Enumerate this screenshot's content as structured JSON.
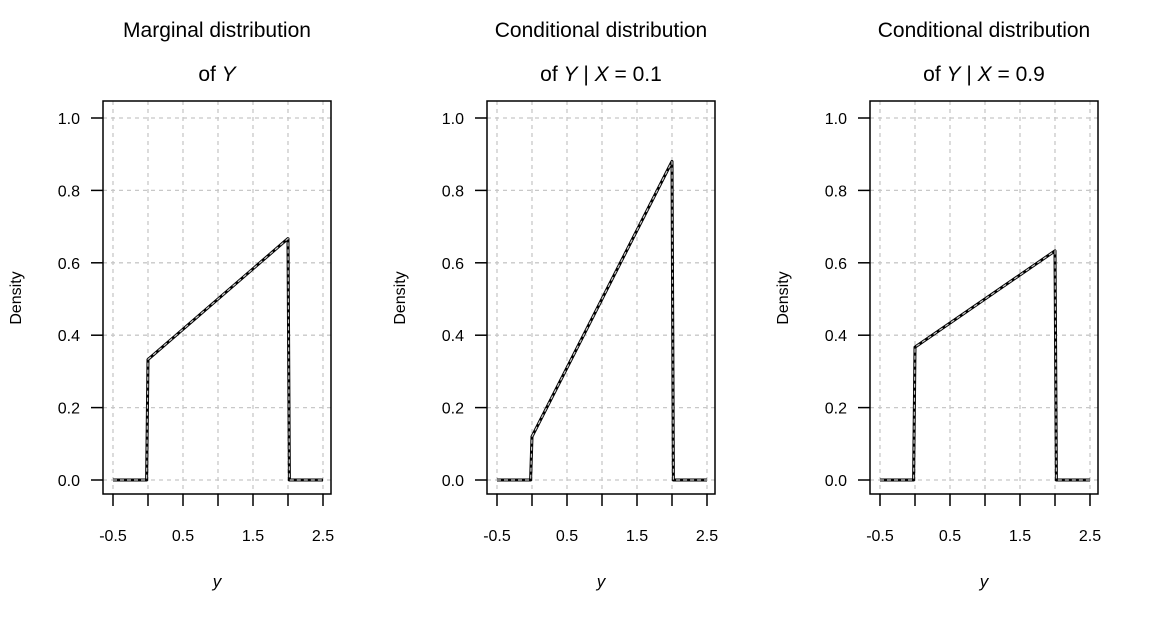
{
  "chart_data": [
    {
      "type": "line",
      "title": [
        "Marginal distribution",
        "of Y"
      ],
      "xlabel": "y",
      "ylabel": "Density",
      "xlim": [
        -0.5,
        2.5
      ],
      "ylim": [
        0,
        1.0
      ],
      "xticks": [
        -0.5,
        0,
        0.5,
        1,
        1.5,
        2,
        2.5
      ],
      "xtick_labels": [
        "-0.5",
        "",
        "0.5",
        "",
        "1.5",
        "",
        "2.5"
      ],
      "yticks": [
        0,
        0.2,
        0.4,
        0.6,
        0.8,
        1.0
      ],
      "ytick_labels": [
        "0.0",
        "0.2",
        "0.4",
        "0.6",
        "0.8",
        "1.0"
      ],
      "grid": true,
      "x": [
        -0.5,
        -0.02,
        0.0,
        2.0,
        2.02,
        2.5
      ],
      "y": [
        0,
        0,
        0.333,
        0.667,
        0,
        0
      ]
    },
    {
      "type": "line",
      "title": [
        "Conditional distribution",
        "of Y | X = 0.1"
      ],
      "xlabel": "y",
      "ylabel": "Density",
      "xlim": [
        -0.5,
        2.5
      ],
      "ylim": [
        0,
        1.0
      ],
      "xticks": [
        -0.5,
        0,
        0.5,
        1,
        1.5,
        2,
        2.5
      ],
      "xtick_labels": [
        "-0.5",
        "",
        "0.5",
        "",
        "1.5",
        "",
        "2.5"
      ],
      "yticks": [
        0,
        0.2,
        0.4,
        0.6,
        0.8,
        1.0
      ],
      "ytick_labels": [
        "0.0",
        "0.2",
        "0.4",
        "0.6",
        "0.8",
        "1.0"
      ],
      "grid": true,
      "x": [
        -0.5,
        -0.02,
        0.0,
        2.0,
        2.02,
        2.5
      ],
      "y": [
        0,
        0,
        0.12,
        0.88,
        0,
        0
      ]
    },
    {
      "type": "line",
      "title": [
        "Conditional distribution",
        "of Y | X = 0.9"
      ],
      "xlabel": "y",
      "ylabel": "Density",
      "xlim": [
        -0.5,
        2.5
      ],
      "ylim": [
        0,
        1.0
      ],
      "xticks": [
        -0.5,
        0,
        0.5,
        1,
        1.5,
        2,
        2.5
      ],
      "xtick_labels": [
        "-0.5",
        "",
        "0.5",
        "",
        "1.5",
        "",
        "2.5"
      ],
      "yticks": [
        0,
        0.2,
        0.4,
        0.6,
        0.8,
        1.0
      ],
      "ytick_labels": [
        "0.0",
        "0.2",
        "0.4",
        "0.6",
        "0.8",
        "1.0"
      ],
      "grid": true,
      "x": [
        -0.5,
        -0.02,
        0.0,
        2.0,
        2.02,
        2.5
      ],
      "y": [
        0,
        0,
        0.367,
        0.633,
        0,
        0
      ]
    }
  ],
  "colors": {
    "line": "#000000",
    "overlay": "#c8c8c8",
    "grid": "#c8c8c8"
  }
}
